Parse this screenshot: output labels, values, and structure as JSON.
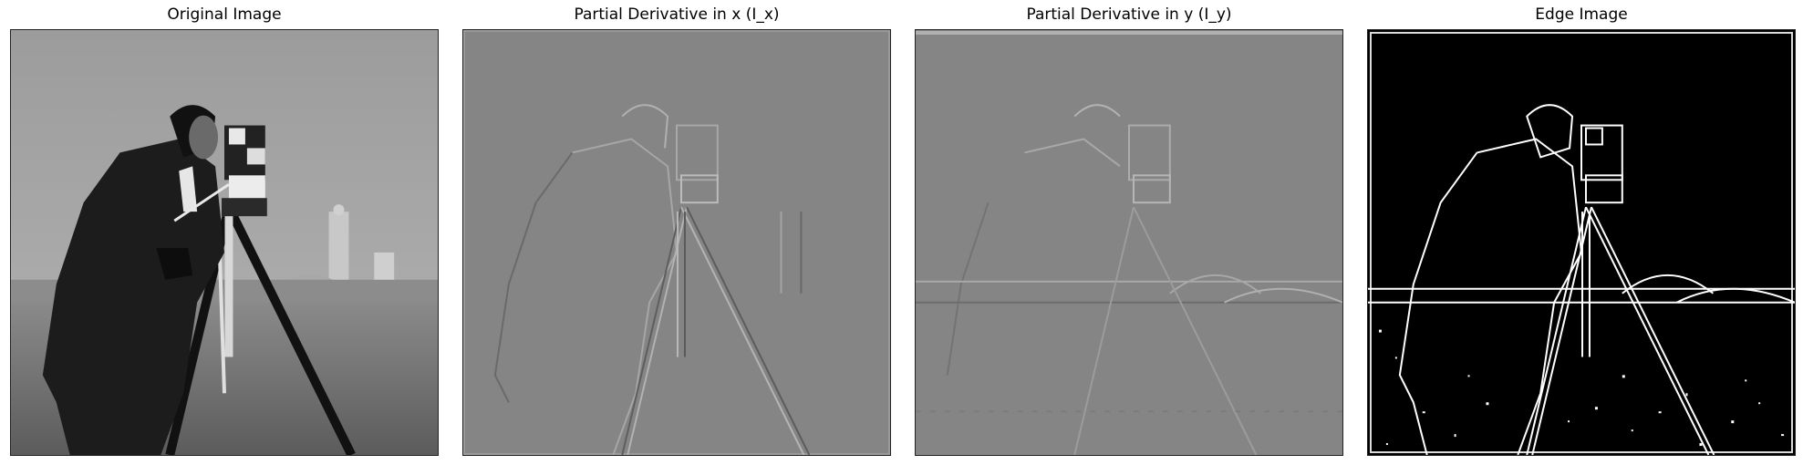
{
  "panels": [
    {
      "title": "Original Image"
    },
    {
      "title": "Partial Derivative in x (I_x)"
    },
    {
      "title": "Partial Derivative in y (I_y)"
    },
    {
      "title": "Edge Image"
    }
  ],
  "colors": {
    "background": "#ffffff",
    "sky": "#9a9a9a",
    "ground": "#6e6e6e",
    "coat": "#1c1c1c",
    "derivative_gray": "#808080",
    "edge_background": "#000000",
    "edge_lines": "#ffffff"
  }
}
